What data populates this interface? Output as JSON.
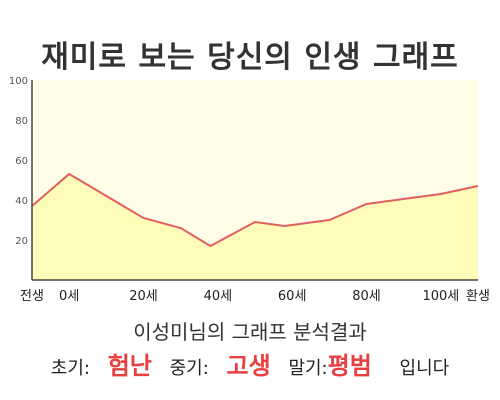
{
  "title": "재미로 보는 당신의 인생 그래프",
  "subtitle": "이성미님의 그래프 분석결과",
  "summary": {
    "early_label": "초기:",
    "early_value": "험난",
    "mid_label": "중기:",
    "mid_value": "고생",
    "late_label": "말기:",
    "late_value": "평범",
    "ending": "입니다"
  },
  "colors": {
    "line": "#e06060",
    "fill": "#fffbb8",
    "plot_bg": "#fffde8",
    "accent": "#e84040"
  },
  "chart_data": {
    "type": "area",
    "ylim": [
      0,
      100
    ],
    "yticks": [
      "20",
      "40",
      "60",
      "80",
      "100"
    ],
    "xlim": [
      -10,
      110
    ],
    "xticks": [
      {
        "x": -10,
        "label": "전생"
      },
      {
        "x": 0,
        "label": "0세"
      },
      {
        "x": 20,
        "label": "20세"
      },
      {
        "x": 40,
        "label": "40세"
      },
      {
        "x": 60,
        "label": "60세"
      },
      {
        "x": 80,
        "label": "80세"
      },
      {
        "x": 100,
        "label": "100세"
      },
      {
        "x": 110,
        "label": "환생"
      }
    ],
    "series": [
      {
        "x": [
          -10,
          0,
          20,
          30,
          38,
          50,
          58,
          70,
          80,
          100,
          110
        ],
        "y": [
          37,
          53,
          31,
          26,
          17,
          29,
          27,
          30,
          38,
          43,
          47
        ]
      }
    ]
  }
}
